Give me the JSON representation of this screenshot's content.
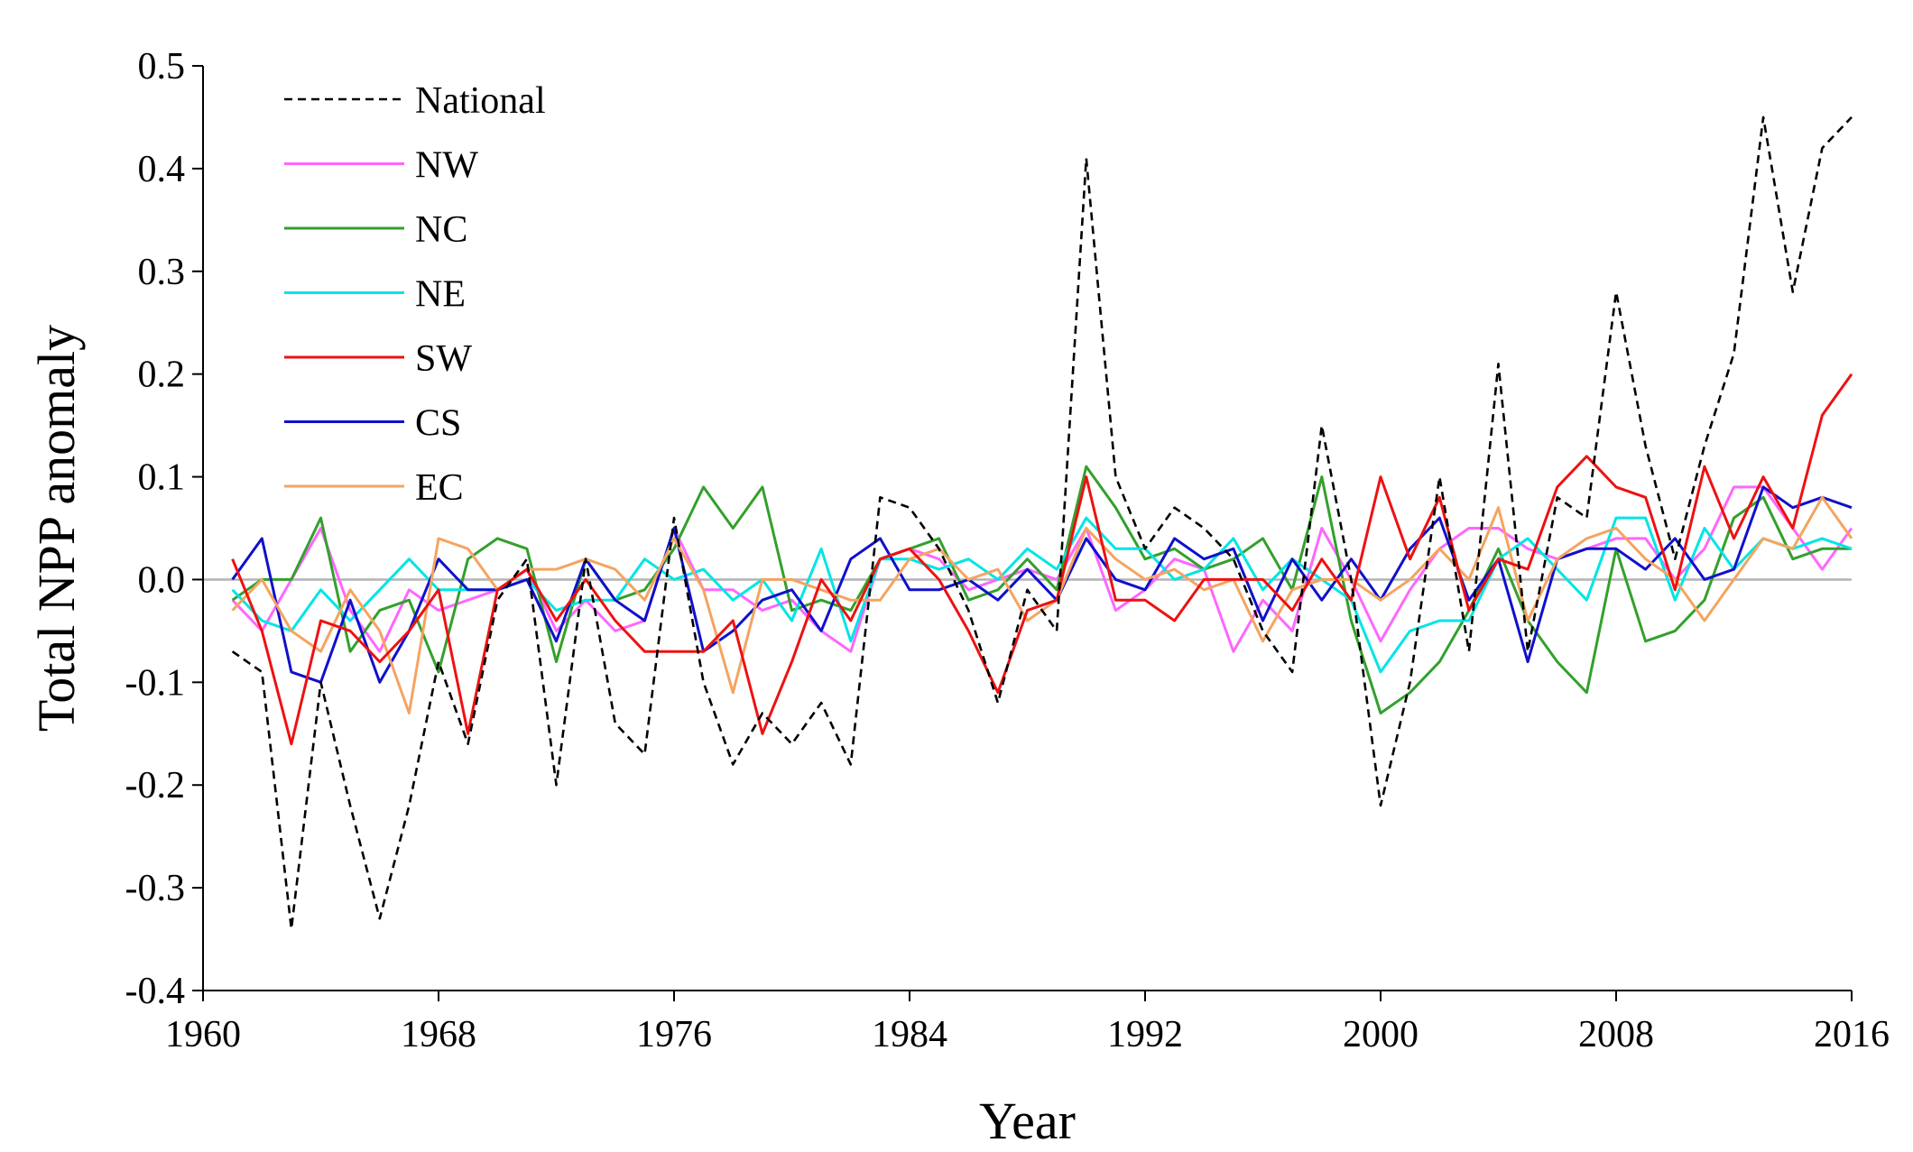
{
  "chart_data": {
    "type": "line",
    "xlabel": "Year",
    "ylabel": "Total NPP anomaly",
    "xlim": [
      1960,
      2016
    ],
    "ylim": [
      -0.4,
      0.5
    ],
    "xticks": [
      1960,
      1968,
      1976,
      1984,
      1992,
      2000,
      2008,
      2016
    ],
    "yticks": [
      -0.4,
      -0.3,
      -0.2,
      -0.1,
      0.0,
      0.1,
      0.2,
      0.3,
      0.4,
      0.5
    ],
    "ytick_labels": [
      "-0.4",
      "-0.3",
      "-0.2",
      "-0.1",
      "0.0",
      "0.1",
      "0.2",
      "0.3",
      "0.4",
      "0.5"
    ],
    "legend_position": "top-left",
    "grid": false,
    "zero_line_color": "#b3b3b3",
    "x": [
      1961,
      1962,
      1963,
      1964,
      1965,
      1966,
      1967,
      1968,
      1969,
      1970,
      1971,
      1972,
      1973,
      1974,
      1975,
      1976,
      1977,
      1978,
      1979,
      1980,
      1981,
      1982,
      1983,
      1984,
      1985,
      1986,
      1987,
      1988,
      1989,
      1990,
      1991,
      1992,
      1993,
      1994,
      1995,
      1996,
      1997,
      1998,
      1999,
      2000,
      2001,
      2002,
      2003,
      2004,
      2005,
      2006,
      2007,
      2008,
      2009,
      2010,
      2011,
      2012,
      2013,
      2014,
      2015,
      2016
    ],
    "series": [
      {
        "name": "National",
        "color": "#000000",
        "dashed": true,
        "values": [
          -0.07,
          -0.09,
          -0.34,
          -0.1,
          -0.22,
          -0.33,
          -0.22,
          -0.08,
          -0.16,
          -0.02,
          0.02,
          -0.2,
          0.02,
          -0.14,
          -0.17,
          0.06,
          -0.1,
          -0.18,
          -0.13,
          -0.16,
          -0.12,
          -0.18,
          0.08,
          0.07,
          0.03,
          -0.03,
          -0.12,
          -0.01,
          -0.05,
          0.41,
          0.1,
          0.03,
          0.07,
          0.05,
          0.02,
          -0.05,
          -0.09,
          0.15,
          0.0,
          -0.22,
          -0.1,
          0.1,
          -0.07,
          0.21,
          -0.07,
          0.08,
          0.06,
          0.28,
          0.13,
          0.02,
          0.13,
          0.22,
          0.45,
          0.28,
          0.42,
          0.45
        ]
      },
      {
        "name": "NW",
        "color": "#ff66ff",
        "values": [
          -0.02,
          -0.05,
          0.0,
          0.05,
          -0.03,
          -0.07,
          -0.01,
          -0.03,
          -0.02,
          -0.01,
          0.01,
          -0.05,
          -0.02,
          -0.05,
          -0.04,
          0.05,
          -0.01,
          -0.01,
          -0.03,
          -0.02,
          -0.05,
          -0.07,
          0.02,
          0.03,
          0.02,
          -0.01,
          0.0,
          0.01,
          0.0,
          0.05,
          -0.03,
          -0.01,
          0.02,
          0.01,
          -0.07,
          -0.02,
          -0.05,
          0.05,
          0.0,
          -0.06,
          -0.01,
          0.03,
          0.05,
          0.05,
          0.03,
          0.02,
          0.03,
          0.04,
          0.04,
          0.0,
          0.03,
          0.09,
          0.09,
          0.05,
          0.01,
          0.05
        ]
      },
      {
        "name": "NC",
        "color": "#33a02c",
        "values": [
          -0.02,
          0.0,
          0.0,
          0.06,
          -0.07,
          -0.03,
          -0.02,
          -0.09,
          0.02,
          0.04,
          0.03,
          -0.08,
          0.02,
          -0.02,
          -0.01,
          0.03,
          0.09,
          0.05,
          0.09,
          -0.03,
          -0.02,
          -0.03,
          0.02,
          0.03,
          0.04,
          -0.02,
          -0.01,
          0.02,
          -0.01,
          0.11,
          0.07,
          0.02,
          0.03,
          0.01,
          0.02,
          0.04,
          -0.01,
          0.1,
          -0.04,
          -0.13,
          -0.11,
          -0.08,
          -0.03,
          0.03,
          -0.04,
          -0.08,
          -0.11,
          0.03,
          -0.06,
          -0.05,
          -0.02,
          0.06,
          0.08,
          0.02,
          0.03,
          0.03
        ]
      },
      {
        "name": "NE",
        "color": "#00e5e5",
        "values": [
          -0.01,
          -0.04,
          -0.05,
          -0.01,
          -0.04,
          -0.01,
          0.02,
          -0.01,
          -0.01,
          -0.01,
          0.0,
          -0.03,
          -0.02,
          -0.02,
          0.02,
          0.0,
          0.01,
          -0.02,
          0.0,
          -0.04,
          0.03,
          -0.06,
          0.02,
          0.02,
          0.01,
          0.02,
          0.0,
          0.03,
          0.01,
          0.06,
          0.03,
          0.03,
          0.0,
          0.01,
          0.04,
          -0.01,
          0.02,
          0.0,
          -0.02,
          -0.09,
          -0.05,
          -0.04,
          -0.04,
          0.02,
          0.04,
          0.01,
          -0.02,
          0.06,
          0.06,
          -0.02,
          0.05,
          0.01,
          0.04,
          0.03,
          0.04,
          0.03
        ]
      },
      {
        "name": "SW",
        "color": "#ee1111",
        "values": [
          0.02,
          -0.05,
          -0.16,
          -0.04,
          -0.05,
          -0.08,
          -0.05,
          -0.01,
          -0.15,
          -0.01,
          0.01,
          -0.04,
          0.0,
          -0.04,
          -0.07,
          -0.07,
          -0.07,
          -0.04,
          -0.15,
          -0.08,
          0.0,
          -0.04,
          0.02,
          0.03,
          0.0,
          -0.05,
          -0.11,
          -0.03,
          -0.02,
          0.1,
          -0.02,
          -0.02,
          -0.04,
          0.0,
          0.0,
          0.0,
          -0.03,
          0.02,
          -0.02,
          0.1,
          0.02,
          0.08,
          -0.03,
          0.02,
          0.01,
          0.09,
          0.12,
          0.09,
          0.08,
          -0.01,
          0.11,
          0.04,
          0.1,
          0.05,
          0.16,
          0.2
        ]
      },
      {
        "name": "CS",
        "color": "#1010cc",
        "values": [
          0.0,
          0.04,
          -0.09,
          -0.1,
          -0.02,
          -0.1,
          -0.05,
          0.02,
          -0.01,
          -0.01,
          0.0,
          -0.06,
          0.02,
          -0.02,
          -0.04,
          0.05,
          -0.07,
          -0.05,
          -0.02,
          -0.01,
          -0.05,
          0.02,
          0.04,
          -0.01,
          -0.01,
          0.0,
          -0.02,
          0.01,
          -0.02,
          0.04,
          0.0,
          -0.01,
          0.04,
          0.02,
          0.03,
          -0.04,
          0.02,
          -0.02,
          0.02,
          -0.02,
          0.03,
          0.06,
          -0.02,
          0.02,
          -0.08,
          0.02,
          0.03,
          0.03,
          0.01,
          0.04,
          0.0,
          0.01,
          0.09,
          0.07,
          0.08,
          0.07
        ]
      },
      {
        "name": "EC",
        "color": "#f4a460",
        "values": [
          -0.03,
          0.0,
          -0.05,
          -0.07,
          -0.01,
          -0.05,
          -0.13,
          0.04,
          0.03,
          -0.01,
          0.01,
          0.01,
          0.02,
          0.01,
          -0.02,
          0.04,
          -0.01,
          -0.11,
          0.0,
          0.0,
          -0.01,
          -0.02,
          -0.02,
          0.02,
          0.03,
          0.0,
          0.01,
          -0.04,
          -0.02,
          0.05,
          0.02,
          0.0,
          0.01,
          -0.01,
          0.0,
          -0.06,
          -0.01,
          0.0,
          0.0,
          -0.02,
          0.0,
          0.03,
          0.0,
          0.07,
          -0.04,
          0.02,
          0.04,
          0.05,
          0.02,
          0.0,
          -0.04,
          0.0,
          0.04,
          0.03,
          0.08,
          0.04
        ]
      }
    ]
  }
}
